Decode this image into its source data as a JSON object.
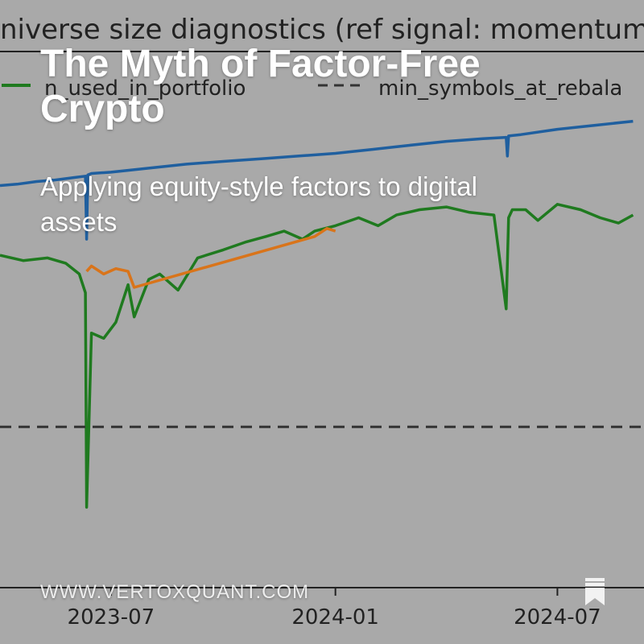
{
  "headline": {
    "title": "The Myth of Factor-Free Crypto",
    "subtitle": "Applying equity-style factors to digital assets"
  },
  "footer": {
    "website": "WWW.VERTOXQUANT.COM",
    "bookmark_icon": "bookmark-icon"
  },
  "colors": {
    "background": "#a9a9a9",
    "series_blue": "#1f5f9f",
    "series_green": "#1f7a1f",
    "series_orange": "#d9741a",
    "dashed": "#333333",
    "overlay_text": "#ffffff"
  },
  "chart_data": {
    "type": "line",
    "title": "niverse size diagnostics (ref signal: momentum",
    "legend_entries": [
      "n_used_in_portfolio",
      "min_symbols_at_rebala"
    ],
    "legend_placement": "top",
    "x_ticks": [
      "2023-07",
      "2024-01",
      "2024-07"
    ],
    "x_tick_dates": [
      "2023-07-01",
      "2024-01-01",
      "2024-07-01"
    ],
    "xlim": [
      "2023-04-01",
      "2024-09-10"
    ],
    "ylim": [
      0,
      200
    ],
    "grid": false,
    "series": [
      {
        "color": "#1f5f9f",
        "x": [
          "2023-04-01",
          "2023-04-15",
          "2023-05-01",
          "2023-05-15",
          "2023-06-01",
          "2023-06-10",
          "2023-06-11",
          "2023-06-12",
          "2023-06-15",
          "2023-07-01",
          "2023-08-01",
          "2023-09-01",
          "2023-10-01",
          "2023-11-01",
          "2023-12-01",
          "2024-01-01",
          "2024-02-01",
          "2024-03-01",
          "2024-04-01",
          "2024-05-01",
          "2024-05-20",
          "2024-05-21",
          "2024-05-22",
          "2024-06-01",
          "2024-07-01",
          "2024-08-01",
          "2024-09-01"
        ],
        "values": [
          150,
          150.5,
          151.5,
          152,
          153,
          153.5,
          130,
          154,
          154.5,
          155,
          156.5,
          158,
          159,
          160,
          161,
          162,
          163.5,
          165,
          166.5,
          167.5,
          168,
          161,
          168.5,
          169,
          171,
          172.5,
          174
        ]
      },
      {
        "color": "#1f7a1f",
        "x": [
          "2023-04-01",
          "2023-04-20",
          "2023-05-10",
          "2023-05-25",
          "2023-06-05",
          "2023-06-10",
          "2023-06-11",
          "2023-06-15",
          "2023-06-25",
          "2023-07-05",
          "2023-07-15",
          "2023-07-20",
          "2023-08-01",
          "2023-08-10",
          "2023-08-25",
          "2023-09-10",
          "2023-10-01",
          "2023-10-20",
          "2023-11-05",
          "2023-11-20",
          "2023-12-05",
          "2023-12-15",
          "2024-01-01",
          "2024-01-20",
          "2024-02-05",
          "2024-02-20",
          "2024-03-10",
          "2024-04-01",
          "2024-04-20",
          "2024-05-10",
          "2024-05-20",
          "2024-05-22",
          "2024-05-25",
          "2024-06-05",
          "2024-06-15",
          "2024-07-01",
          "2024-07-20",
          "2024-08-05",
          "2024-08-20",
          "2024-09-01"
        ],
        "values": [
          124,
          122,
          123,
          121,
          117,
          110,
          30,
          95,
          93,
          99,
          113,
          101,
          115,
          117,
          111,
          123,
          126,
          129,
          131,
          133,
          130,
          133,
          135,
          138,
          135,
          139,
          141,
          142,
          140,
          139,
          104,
          138,
          141,
          141,
          137,
          143,
          141,
          138,
          136,
          139
        ]
      },
      {
        "color": "#d9741a",
        "x": [
          "2023-06-11",
          "2023-06-15",
          "2023-06-25",
          "2023-07-05",
          "2023-07-15",
          "2023-07-20",
          "2023-12-15",
          "2023-12-25",
          "2024-01-01"
        ],
        "values": [
          118,
          120,
          117,
          119,
          118,
          112,
          131,
          134,
          133
        ]
      },
      {
        "color": "#333333",
        "dashed": true,
        "x": [
          "2023-04-01",
          "2024-09-10"
        ],
        "values": [
          60,
          60
        ]
      }
    ]
  }
}
